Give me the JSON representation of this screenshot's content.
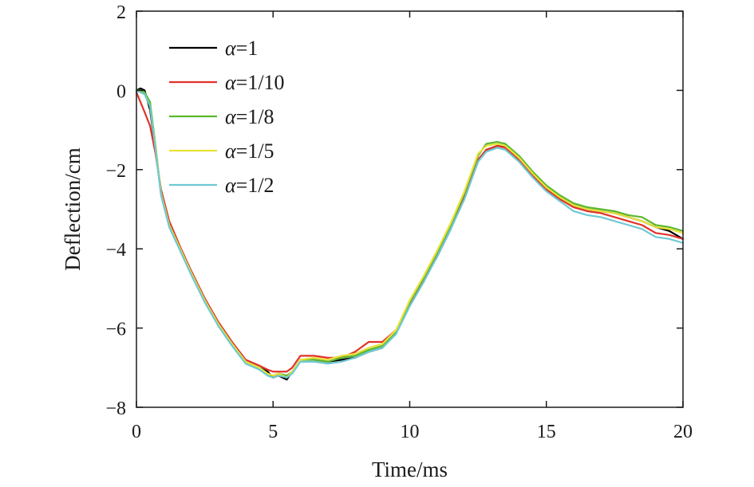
{
  "chart_data": {
    "type": "line",
    "title": "",
    "xlabel": "Time/ms",
    "ylabel": "Deflection/cm",
    "xlim": [
      0,
      20
    ],
    "ylim": [
      -8,
      2
    ],
    "xticks": [
      0,
      5,
      10,
      15,
      20
    ],
    "yticks": [
      -8,
      -6,
      -4,
      -2,
      0,
      2
    ],
    "xtick_labels": [
      "0",
      "5",
      "10",
      "15",
      "20"
    ],
    "ytick_labels": [
      "−8",
      "−6",
      "−4",
      "−2",
      "0",
      "2"
    ],
    "grid": false,
    "legend_position": "upper-left",
    "series": [
      {
        "name": "1",
        "color": "#000000",
        "x": [
          0,
          0.15,
          0.3,
          0.5,
          0.7,
          0.9,
          1.2,
          1.6,
          2.0,
          2.5,
          3.0,
          3.5,
          4.0,
          4.5,
          4.8,
          5.0,
          5.2,
          5.5,
          5.7,
          6.0,
          6.5,
          7.0,
          7.5,
          8.0,
          8.5,
          9.0,
          9.5,
          10.0,
          10.5,
          11.0,
          11.5,
          12.0,
          12.5,
          12.8,
          13.2,
          13.5,
          14.0,
          14.5,
          15.0,
          15.5,
          16.0,
          16.5,
          17.0,
          17.5,
          18.0,
          18.5,
          19.0,
          19.5,
          20.0
        ],
        "y": [
          0,
          0.05,
          0.0,
          -0.5,
          -1.5,
          -2.6,
          -3.4,
          -4.0,
          -4.6,
          -5.3,
          -5.9,
          -6.4,
          -6.85,
          -7.0,
          -7.1,
          -7.25,
          -7.2,
          -7.3,
          -7.1,
          -6.8,
          -6.8,
          -6.85,
          -6.8,
          -6.75,
          -6.6,
          -6.5,
          -6.1,
          -5.4,
          -4.8,
          -4.2,
          -3.5,
          -2.7,
          -1.8,
          -1.5,
          -1.4,
          -1.4,
          -1.7,
          -2.1,
          -2.45,
          -2.7,
          -2.9,
          -3.0,
          -3.05,
          -3.1,
          -3.2,
          -3.3,
          -3.45,
          -3.55,
          -3.75
        ]
      },
      {
        "name": "1/10",
        "color": "#e0322a",
        "x": [
          0,
          0.15,
          0.3,
          0.5,
          0.7,
          0.9,
          1.2,
          1.6,
          2.0,
          2.5,
          3.0,
          3.5,
          4.0,
          4.5,
          4.8,
          5.0,
          5.2,
          5.5,
          5.7,
          6.0,
          6.5,
          7.0,
          7.5,
          8.0,
          8.5,
          9.0,
          9.5,
          10.0,
          10.5,
          11.0,
          11.5,
          12.0,
          12.5,
          12.8,
          13.2,
          13.5,
          14.0,
          14.5,
          15.0,
          15.5,
          16.0,
          16.5,
          17.0,
          17.5,
          18.0,
          18.5,
          19.0,
          19.5,
          20.0
        ],
        "y": [
          -0.05,
          -0.3,
          -0.55,
          -0.9,
          -1.6,
          -2.5,
          -3.3,
          -3.95,
          -4.55,
          -5.25,
          -5.85,
          -6.35,
          -6.8,
          -6.95,
          -7.05,
          -7.1,
          -7.1,
          -7.1,
          -7.0,
          -6.7,
          -6.7,
          -6.75,
          -6.75,
          -6.6,
          -6.35,
          -6.35,
          -6.05,
          -5.4,
          -4.8,
          -4.15,
          -3.45,
          -2.65,
          -1.75,
          -1.5,
          -1.4,
          -1.45,
          -1.75,
          -2.15,
          -2.5,
          -2.75,
          -2.95,
          -3.05,
          -3.1,
          -3.2,
          -3.3,
          -3.4,
          -3.6,
          -3.65,
          -3.75
        ]
      },
      {
        "name": "1/8",
        "color": "#5bb82f",
        "x": [
          0,
          0.15,
          0.3,
          0.5,
          0.7,
          0.9,
          1.2,
          1.6,
          2.0,
          2.5,
          3.0,
          3.5,
          4.0,
          4.5,
          4.8,
          5.0,
          5.2,
          5.5,
          5.7,
          6.0,
          6.5,
          7.0,
          7.5,
          8.0,
          8.5,
          9.0,
          9.5,
          10.0,
          10.5,
          11.0,
          11.5,
          12.0,
          12.5,
          12.8,
          13.2,
          13.5,
          14.0,
          14.5,
          15.0,
          15.5,
          16.0,
          16.5,
          17.0,
          17.5,
          18.0,
          18.5,
          19.0,
          19.5,
          20.0
        ],
        "y": [
          0,
          0.0,
          -0.05,
          -0.3,
          -1.4,
          -2.6,
          -3.4,
          -4.0,
          -4.6,
          -5.3,
          -5.9,
          -6.4,
          -6.85,
          -7.0,
          -7.15,
          -7.2,
          -7.15,
          -7.2,
          -7.1,
          -6.8,
          -6.8,
          -6.85,
          -6.75,
          -6.7,
          -6.55,
          -6.45,
          -6.1,
          -5.35,
          -4.75,
          -4.1,
          -3.4,
          -2.6,
          -1.65,
          -1.35,
          -1.3,
          -1.35,
          -1.65,
          -2.05,
          -2.4,
          -2.65,
          -2.85,
          -2.95,
          -3.0,
          -3.05,
          -3.15,
          -3.2,
          -3.4,
          -3.45,
          -3.55
        ]
      },
      {
        "name": "1/5",
        "color": "#e8e23a",
        "x": [
          0,
          0.15,
          0.3,
          0.5,
          0.7,
          0.9,
          1.2,
          1.6,
          2.0,
          2.5,
          3.0,
          3.5,
          4.0,
          4.5,
          4.8,
          5.0,
          5.2,
          5.5,
          5.7,
          6.0,
          6.5,
          7.0,
          7.5,
          8.0,
          8.5,
          9.0,
          9.5,
          10.0,
          10.5,
          11.0,
          11.5,
          12.0,
          12.5,
          12.8,
          13.2,
          13.5,
          14.0,
          14.5,
          15.0,
          15.5,
          16.0,
          16.5,
          17.0,
          17.5,
          18.0,
          18.5,
          19.0,
          19.5,
          20.0
        ],
        "y": [
          0,
          -0.05,
          -0.1,
          -0.4,
          -1.45,
          -2.6,
          -3.4,
          -4.0,
          -4.6,
          -5.3,
          -5.9,
          -6.4,
          -6.85,
          -7.0,
          -7.15,
          -7.2,
          -7.15,
          -7.25,
          -7.1,
          -6.8,
          -6.75,
          -6.8,
          -6.7,
          -6.65,
          -6.5,
          -6.4,
          -6.05,
          -5.3,
          -4.7,
          -4.05,
          -3.35,
          -2.55,
          -1.6,
          -1.4,
          -1.35,
          -1.4,
          -1.7,
          -2.1,
          -2.45,
          -2.7,
          -2.9,
          -3.0,
          -3.05,
          -3.1,
          -3.2,
          -3.3,
          -3.45,
          -3.5,
          -3.6
        ]
      },
      {
        "name": "1/2",
        "color": "#6ec9d4",
        "x": [
          0,
          0.15,
          0.3,
          0.5,
          0.7,
          0.9,
          1.2,
          1.6,
          2.0,
          2.5,
          3.0,
          3.5,
          4.0,
          4.5,
          4.8,
          5.0,
          5.2,
          5.5,
          5.7,
          6.0,
          6.5,
          7.0,
          7.5,
          8.0,
          8.5,
          9.0,
          9.5,
          10.0,
          10.5,
          11.0,
          11.5,
          12.0,
          12.5,
          12.8,
          13.2,
          13.5,
          14.0,
          14.5,
          15.0,
          15.5,
          16.0,
          16.5,
          17.0,
          17.5,
          18.0,
          18.5,
          19.0,
          19.5,
          20.0
        ],
        "y": [
          0,
          -0.05,
          -0.1,
          -0.4,
          -1.5,
          -2.65,
          -3.45,
          -4.05,
          -4.65,
          -5.35,
          -5.95,
          -6.45,
          -6.9,
          -7.05,
          -7.2,
          -7.25,
          -7.2,
          -7.25,
          -7.15,
          -6.85,
          -6.85,
          -6.9,
          -6.85,
          -6.75,
          -6.6,
          -6.5,
          -6.15,
          -5.45,
          -4.85,
          -4.2,
          -3.5,
          -2.75,
          -1.8,
          -1.55,
          -1.45,
          -1.5,
          -1.8,
          -2.2,
          -2.55,
          -2.8,
          -3.05,
          -3.15,
          -3.2,
          -3.3,
          -3.4,
          -3.5,
          -3.7,
          -3.75,
          -3.85
        ]
      }
    ]
  },
  "legend": {
    "alpha_symbol": "α",
    "prefix": "="
  }
}
